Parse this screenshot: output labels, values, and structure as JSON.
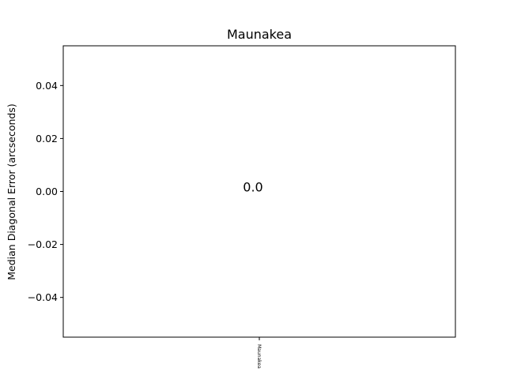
{
  "chart_data": {
    "type": "bar",
    "title": "Maunakea",
    "xlabel": "",
    "ylabel": "Median Diagonal Error (arcseconds)",
    "categories": [
      "Maunakea"
    ],
    "values": [
      0.0
    ],
    "data_labels": [
      "0.0"
    ],
    "ylim": [
      -0.055,
      0.055
    ],
    "y_ticks": [
      -0.04,
      -0.02,
      0.0,
      0.02,
      0.04
    ],
    "y_tick_labels": [
      "−0.04",
      "−0.02",
      "0.00",
      "0.02",
      "0.04"
    ],
    "grid": false,
    "legend": "none",
    "colors": {
      "axes": "#000000",
      "bar": "#1f77b4",
      "background": "#ffffff"
    }
  }
}
